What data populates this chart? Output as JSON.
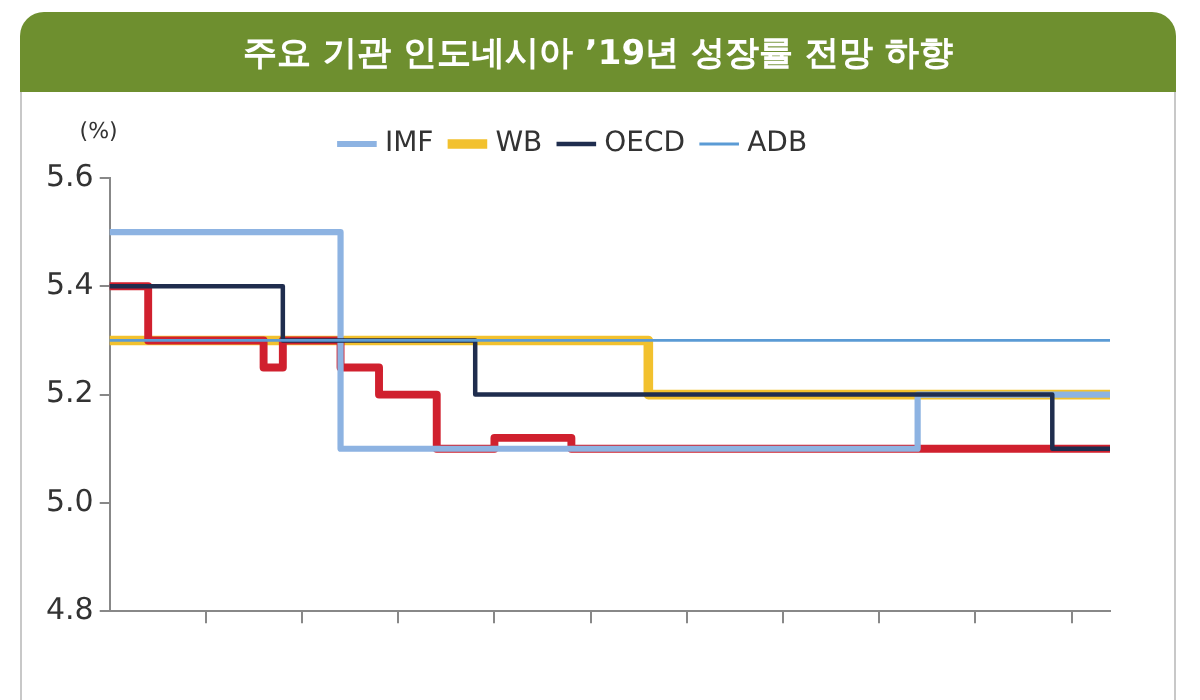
{
  "chart_data": {
    "type": "step",
    "title": "주요 기관 인도네시아 ’19년 성장률 전망 하향",
    "ylabel": "(%)",
    "categories": [
      null,
      null,
      null,
      null,
      null,
      null,
      null,
      null,
      null,
      null,
      null,
      null,
      null,
      null,
      null,
      null,
      null,
      null,
      null,
      null,
      null,
      null,
      null,
      null,
      null,
      null,
      null,
      null,
      null,
      null,
      null,
      null,
      null,
      null,
      null,
      null,
      null,
      null,
      null,
      null,
      null,
      null,
      null,
      null,
      null,
      null,
      null,
      null,
      null,
      null,
      null,
      null,
      null
    ],
    "series": [
      {
        "name": "IMF",
        "color": "#8db3e2",
        "values": [
          5.5,
          5.5,
          5.5,
          5.5,
          5.5,
          5.5,
          5.5,
          5.5,
          5.5,
          5.5,
          5.5,
          5.5,
          5.5,
          5.1,
          5.1,
          5.1,
          5.1,
          5.1,
          5.1,
          5.1,
          5.1,
          5.1,
          5.1,
          5.1,
          5.1,
          5.1,
          5.1,
          5.1,
          5.1,
          5.1,
          5.1,
          5.1,
          5.1,
          5.1,
          5.1,
          5.1,
          5.1,
          5.1,
          5.1,
          5.1,
          5.1,
          5.1,
          5.1,
          5.2,
          5.2,
          5.2,
          5.2,
          5.2,
          5.2,
          5.2,
          5.2,
          5.2,
          5.2
        ]
      },
      {
        "name": "WB",
        "color": "#f2c12e",
        "values": [
          5.3,
          5.3,
          5.3,
          5.3,
          5.3,
          5.3,
          5.3,
          5.3,
          5.3,
          5.3,
          5.3,
          5.3,
          5.3,
          5.3,
          5.3,
          5.3,
          5.3,
          5.3,
          5.3,
          5.3,
          5.3,
          5.3,
          5.3,
          5.3,
          5.3,
          5.3,
          5.3,
          5.3,
          5.3,
          5.2,
          5.2,
          5.2,
          5.2,
          5.2,
          5.2,
          5.2,
          5.2,
          5.2,
          5.2,
          5.2,
          5.2,
          5.2,
          5.2,
          5.2,
          5.2,
          5.2,
          5.2,
          5.2,
          5.2,
          5.2,
          5.2,
          5.2,
          5.2
        ]
      },
      {
        "name": "OECD",
        "color": "#1f2d4e",
        "values": [
          5.4,
          5.4,
          5.4,
          5.4,
          5.4,
          5.4,
          5.4,
          5.4,
          5.4,
          5.4,
          5.3,
          5.3,
          5.3,
          5.3,
          5.3,
          5.3,
          5.3,
          5.3,
          5.3,
          5.3,
          5.2,
          5.2,
          5.2,
          5.2,
          5.2,
          5.2,
          5.2,
          5.2,
          5.2,
          5.2,
          5.2,
          5.2,
          5.2,
          5.2,
          5.2,
          5.2,
          5.2,
          5.2,
          5.2,
          5.2,
          5.2,
          5.2,
          5.2,
          5.2,
          5.2,
          5.2,
          5.2,
          5.2,
          5.2,
          5.2,
          5.1,
          5.1,
          5.1
        ]
      },
      {
        "name": "ADB",
        "color": "#5b9bd5",
        "values": [
          5.3,
          5.3,
          5.3,
          5.3,
          5.3,
          5.3,
          5.3,
          5.3,
          5.3,
          5.3,
          5.3,
          5.3,
          5.3,
          5.3,
          5.3,
          5.3,
          5.3,
          5.3,
          5.3,
          5.3,
          5.3,
          5.3,
          5.3,
          5.3,
          5.3,
          5.3,
          5.3,
          5.3,
          5.3,
          5.3,
          5.3,
          5.3,
          5.3,
          5.3,
          5.3,
          5.3,
          5.3,
          5.3,
          5.3,
          5.3,
          5.3,
          5.3,
          5.3,
          5.3,
          5.3,
          5.3,
          5.3,
          5.3,
          5.3,
          5.3,
          5.3,
          5.3,
          5.3
        ]
      },
      {
        "color": "#d0202e",
        "values": [
          5.4,
          5.4,
          5.4,
          5.3,
          5.3,
          5.3,
          5.3,
          5.3,
          5.3,
          5.25,
          5.3,
          5.3,
          5.3,
          5.25,
          5.25,
          5.2,
          5.2,
          5.2,
          5.1,
          5.1,
          5.1,
          5.12,
          5.12,
          5.12,
          5.12,
          5.1,
          5.1,
          5.1,
          5.1,
          5.1,
          5.1,
          5.1,
          5.1,
          5.1,
          5.1,
          5.1,
          5.1,
          5.1,
          5.1,
          5.1,
          5.1,
          5.1,
          5.1,
          5.1,
          5.1,
          5.1,
          5.1,
          5.1,
          5.1,
          5.1,
          5.1,
          5.1,
          5.1
        ]
      }
    ],
    "ylim": [
      4.8,
      5.6
    ],
    "yticks": [
      4.8,
      {
        "value": 5,
        "label": "5.0"
      },
      5.2,
      5.4,
      5.6
    ],
    "grid": false,
    "legend": "top"
  }
}
